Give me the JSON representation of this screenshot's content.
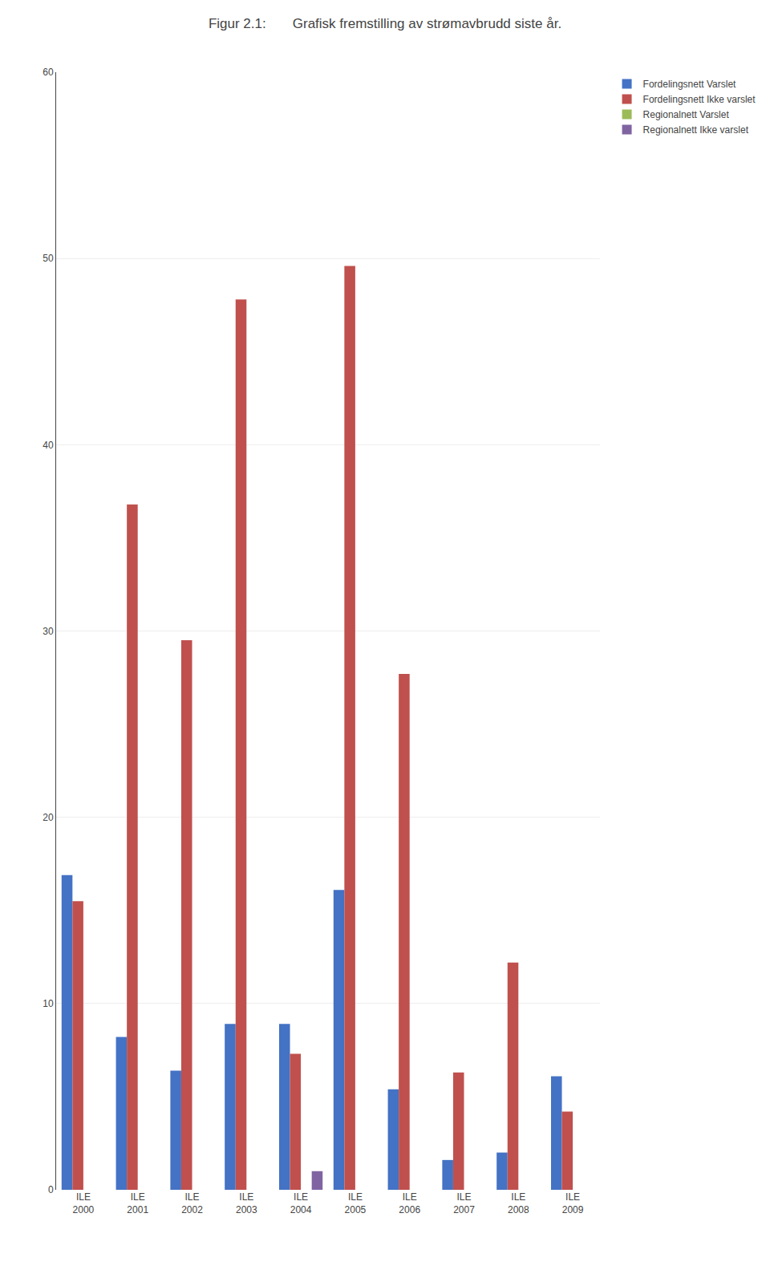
{
  "chart_data": {
    "type": "bar",
    "title": "Figur 2.1:       Grafisk fremstilling av strømavbrudd siste år.",
    "categories": [
      "ILE\n2000",
      "ILE\n2001",
      "ILE\n2002",
      "ILE\n2003",
      "ILE\n2004",
      "ILE\n2005",
      "ILE\n2006",
      "ILE\n2007",
      "ILE\n2008",
      "ILE\n2009"
    ],
    "series": [
      {
        "name": "Fordelingsnett Varslet",
        "color": "#4472C4",
        "values": [
          16.9,
          8.2,
          6.4,
          8.9,
          8.9,
          16.1,
          5.4,
          1.6,
          2.0,
          6.1
        ]
      },
      {
        "name": "Fordelingsnett Ikke varslet",
        "color": "#C0504D",
        "values": [
          15.5,
          36.8,
          29.5,
          47.8,
          7.3,
          49.6,
          27.7,
          6.3,
          12.2,
          4.2
        ]
      },
      {
        "name": "Regionalnett Varslet",
        "color": "#9BBB59",
        "values": [
          0,
          0,
          0,
          0,
          0,
          0,
          0,
          0,
          0,
          0
        ]
      },
      {
        "name": "Regionalnett Ikke varslet",
        "color": "#8064A2",
        "values": [
          0,
          0,
          0,
          0,
          1,
          0,
          0,
          0,
          0,
          0
        ]
      }
    ],
    "ylim": [
      0,
      60
    ],
    "yticks": [
      0,
      10,
      20,
      30,
      40,
      50,
      60
    ],
    "grid": true,
    "legend": "upper right"
  }
}
